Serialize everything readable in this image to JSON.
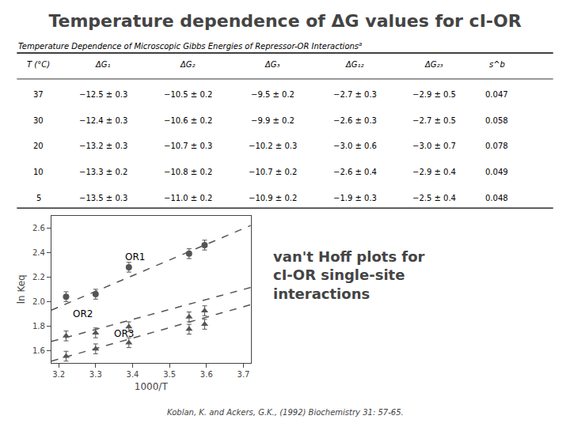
{
  "chart_data": {
    "type": "scatter",
    "title": "Temperature dependence of ΔG values for cI-OR",
    "xlabel": "1000/T",
    "ylabel": "ln Keq",
    "xlim": [
      3.18,
      3.72
    ],
    "ylim": [
      1.5,
      2.7
    ],
    "xticks": [
      3.2,
      3.3,
      3.4,
      3.5,
      3.6,
      3.7
    ],
    "yticks": [
      1.6,
      1.8,
      {
        "value": 2.0,
        "label": "2.0"
      },
      2.2,
      2.4,
      2.6
    ],
    "grid": false,
    "color": "#555555",
    "series": [
      {
        "type": "scatter",
        "marker": "circle",
        "x": [
          3.22,
          3.3,
          3.39,
          3.553,
          3.595
        ],
        "values": [
          2.04,
          2.06,
          2.28,
          2.39,
          2.46
        ],
        "errors": [
          0.04,
          0.04,
          0.04,
          0.04,
          0.04
        ]
      },
      {
        "type": "line",
        "line_style": "dash",
        "x": [
          3.18,
          3.72
        ],
        "values": [
          1.93,
          2.62
        ]
      },
      {
        "type": "scatter",
        "marker": "triangle-up",
        "x": [
          3.22,
          3.3,
          3.39,
          3.553,
          3.595
        ],
        "values": [
          1.72,
          1.745,
          1.795,
          1.875,
          1.925
        ],
        "errors": [
          0.04,
          0.04,
          0.04,
          0.04,
          0.04
        ]
      },
      {
        "type": "line",
        "line_style": "dash",
        "x": [
          3.18,
          3.72
        ],
        "values": [
          1.675,
          2.115
        ]
      },
      {
        "type": "scatter",
        "marker": "triangle-up",
        "x": [
          3.22,
          3.3,
          3.39,
          3.553,
          3.595
        ],
        "values": [
          1.555,
          1.615,
          1.665,
          1.775,
          1.815
        ],
        "errors": [
          0.04,
          0.04,
          0.04,
          0.04,
          0.04
        ]
      },
      {
        "type": "line",
        "line_style": "dash",
        "x": [
          3.18,
          3.72
        ],
        "values": [
          1.515,
          1.975
        ]
      }
    ],
    "annotations": [
      {
        "text": "OR1",
        "x": 3.375,
        "y": 2.305
      },
      {
        "text": "OR2",
        "x": 3.235,
        "y": 1.84
      },
      {
        "text": "OR3",
        "x": 3.345,
        "y": 1.68
      }
    ],
    "note": "van't Hoff plots for\ncI-OR single-site\ninteractions",
    "source": "Koblan, K. and Ackers, G.K., (1992) Biochemistry 31: 57-65.",
    "table": {
      "caption": "Temperature Dependence of Microscopic Gibbs Energies of Repressor-OR Interactions",
      "caption_mark": "a",
      "headers": [
        "T (°C)",
        "ΔG₁",
        "ΔG₂",
        "ΔG₃",
        "ΔG₁₂",
        "ΔG₂₃",
        "s^b"
      ],
      "rows": [
        [
          "37",
          "−12.5 ± 0.3",
          "−10.5 ± 0.2",
          "−9.5 ± 0.2",
          "−2.7 ± 0.3",
          "−2.9 ± 0.5",
          "0.047"
        ],
        [
          "30",
          "−12.4 ± 0.3",
          "−10.6 ± 0.2",
          "−9.9 ± 0.2",
          "−2.6 ± 0.3",
          "−2.7 ± 0.5",
          "0.058"
        ],
        [
          "20",
          "−13.2 ± 0.3",
          "−10.7 ± 0.3",
          "−10.2 ± 0.3",
          "−3.0 ± 0.6",
          "−3.0 ± 0.7",
          "0.078"
        ],
        [
          "10",
          "−13.3 ± 0.2",
          "−10.8 ± 0.2",
          "−10.7 ± 0.2",
          "−2.6 ± 0.4",
          "−2.9 ± 0.4",
          "0.049"
        ],
        [
          "5",
          "−13.5 ± 0.3",
          "−11.0 ± 0.2",
          "−10.9 ± 0.2",
          "−1.9 ± 0.3",
          "−2.5 ± 0.4",
          "0.048"
        ]
      ]
    }
  }
}
